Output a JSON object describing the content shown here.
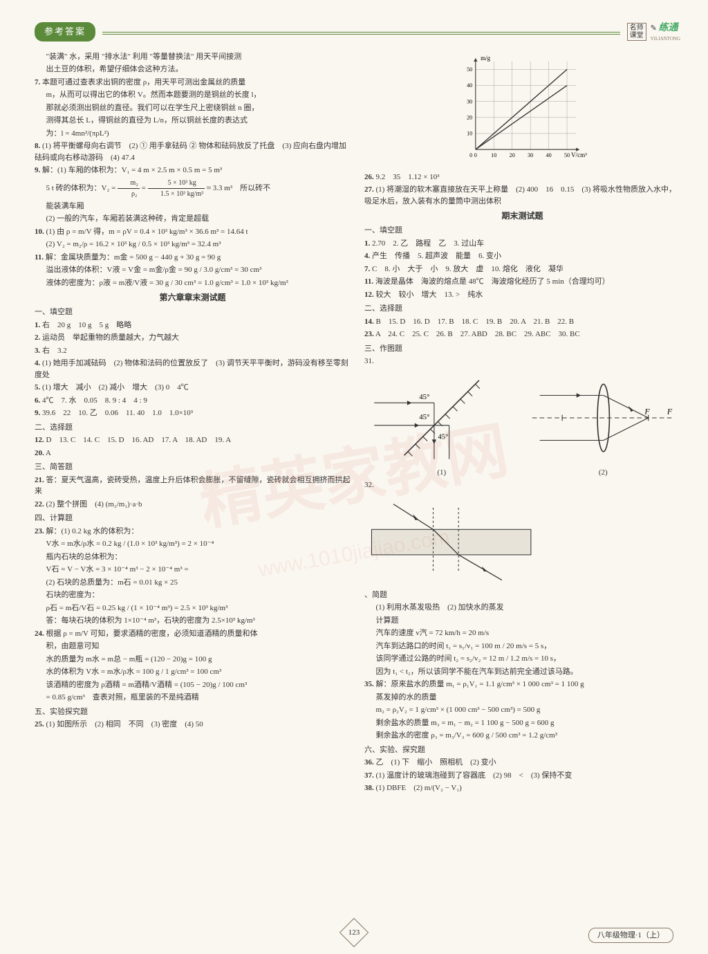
{
  "header": {
    "left_badge": "参考答案",
    "right_box1": "名师",
    "right_box2": "课堂",
    "right_title": "练通",
    "right_sub": "YILIANTONG"
  },
  "left_col": {
    "intro_lines": [
      "\"装满\" 水，采用 \"排水法\" 利用 \"等量替换法\" 用天平间接测",
      "出土豆的体积，希望仔细体会这种方法。"
    ],
    "q7": [
      "本题可通过查表求出铜的密度 ρ，用天平可测出金属丝的质量",
      "m，从而可以得出它的体积 V。然而本题要测的是铜丝的长度 l，",
      "那就必须测出铜丝的直径。我们可以在学生尺上密绕铜丝 n 圈，",
      "测得其总长 L，得铜丝的直径为 L/n，所以铜丝长度的表达式",
      "为：l = 4mn²/(πρL²)"
    ],
    "q8": "(1) 将平衡螺母向右调节　(2) ① 用手拿砝码 ② 物体和砝码放反了托盘　(3) 应向右盘内增加砝码或向右移动游码　(4) 47.4",
    "q9": {
      "l1": "解：(1) 车厢的体积为：V₁ = 4 m × 2.5 m × 0.5 m = 5 m³",
      "l2_a": "5 t 砖的体积为：V₂ = ",
      "l2_frac_n": "m₂",
      "l2_frac_d": "ρ₂",
      "l2_eq": " = ",
      "l2_frac2_n": "5 × 10³ kg",
      "l2_frac2_d": "1.5 × 10³ kg/m³",
      "l2_b": " ≈ 3.3 m³　所以砖不",
      "l3": "能装满车厢",
      "l4": "(2) 一般的汽车，车厢若装满这种砖，肯定是超载"
    },
    "q10": [
      "(1) 由 ρ = m/V 得，m = ρV = 0.4 × 10³ kg/m³ × 36.6 m³ = 14.64 t",
      "(2) V₂ = m₂/ρ = 16.2 × 10³ kg / 0.5 × 10³ kg/m³ = 32.4 m³"
    ],
    "q11": {
      "l1": "解：金属块质量为：m金 = 500 g − 440 g + 30 g = 90 g",
      "l2": "溢出液体的体积：V液 = V金 = m金/ρ金 = 90 g / 3.0 g/cm³ = 30 cm³",
      "l3": "液体的密度为：ρ液 = m液/V液 = 30 g / 30 cm³ = 1.0 g/cm³ = 1.0 × 10³ kg/m³"
    },
    "section2": "第六章章末测试题",
    "fill_heading": "一、填空题",
    "f1": "右　20 g　10 g　5 g　略略",
    "f2": "运动员　举起重物的质量越大，力气越大",
    "f3": "右　3.2",
    "f4": "(1) 她用手加减砝码　(2) 物体和法码的位置放反了　(3) 调节天平平衡时，游码没有移至零刻度处",
    "f5": "(1) 增大　减小　(2) 减小　增大　(3) 0　4℃",
    "f6": "4℃　7. 水　0.05　8. 9 : 4　4 : 9",
    "f9": "39.6　22　10. 乙　0.06　11. 40　1.0　1.0×10³",
    "choice_heading": "二、选择题",
    "c12": "D　13. C　14. C　15. D　16. AD　17. A　18. AD　19. A",
    "c20": "A",
    "short_heading": "三、简答题",
    "s21": "答：夏天气温高，瓷砖受热，温度上升后体积会膨胀，不留缝隙，瓷砖就会相互拥挤而拱起来",
    "s22": "(2) 整个拼图　(4) (m₂/m₁)·a·b",
    "calc_heading": "四、计算题",
    "c23": {
      "l1": "解：(1) 0.2 kg 水的体积为：",
      "l2": "V水 = m水/ρ水 = 0.2 kg / (1.0 × 10³ kg/m³) = 2 × 10⁻⁴",
      "l3": "瓶内石块的总体积为：",
      "l4": "V石 = V − V水 = 3 × 10⁻⁴ m³ − 2 × 10⁻⁴ m³ =",
      "l5": "(2) 石块的总质量为：m石 = 0.01 kg × 25",
      "l6": "石块的密度为：",
      "l7": "ρ石 = m石/V石 = 0.25 kg / (1 × 10⁻⁴ m³) = 2.5 × 10³ kg/m³",
      "l8": "答：每块石块的体积为 1×10⁻⁴ m³，石块的密度为 2.5×10³ kg/m³"
    },
    "c24": {
      "l1": "根据 ρ = m/V 可知，要求酒精的密度，必须知道酒精的质量和体",
      "l2": "积，由题意可知",
      "l3": "水的质量为 m水 = m总 − m瓶 = (120 − 20)g = 100 g",
      "l4": "水的体积为 V水 = m水/ρ水 = 100 g / 1 g/cm³ = 100 cm³",
      "l5": "该酒精的密度为 ρ酒精 = m酒精/V酒精 = (105 − 20)g / 100 cm³",
      "l6": "= 0.85 g/cm³　查表对照，瓶里装的不是纯酒精"
    },
    "exp_heading": "五、实验探究题",
    "e25": "(1) 如图所示　(2) 相同　不同　(3) 密度　(4) 50"
  },
  "right_col": {
    "chart": {
      "type": "line",
      "x_label": "V/cm³",
      "y_label": "m/g",
      "xlim": [
        0,
        55
      ],
      "ylim": [
        0,
        55
      ],
      "xticks": [
        0,
        10,
        20,
        30,
        40,
        50
      ],
      "yticks": [
        10,
        20,
        30,
        40,
        50
      ],
      "series": [
        {
          "points": [
            [
              0,
              0
            ],
            [
              50,
              50
            ]
          ],
          "color": "#333"
        },
        {
          "points": [
            [
              0,
              0
            ],
            [
              50,
              40
            ]
          ],
          "color": "#333"
        }
      ],
      "grid_color": "#999",
      "axis_color": "#333",
      "background_color": "#faf7f0"
    },
    "q26": "9.2　35　1.12 × 10³",
    "q27": "(1) 将潮湿的软木塞直接放在天平上称量　(2) 400　16　0.15　(3) 将吸水性物质放入水中，吸足水后，放入装有水的量筒中测出体积",
    "section3": "期末测试题",
    "fill_heading": "一、填空题",
    "f1": "2.70　2. 乙　路程　乙　3. 过山车",
    "f4": "产生　传播　5. 超声波　能量　6. 变小",
    "f7": "C　8. 小　大于　小　9. 放大　虚　10. 熔化　液化　凝华",
    "f11": "海波是晶体　海波的熔点是 48℃　海波熔化经历了 5 min（合理均可）",
    "f12": "较大　较小　增大　13. >　纯水",
    "choice_heading": "二、选择题",
    "c14": "B　15. D　16. D　17. B　18. C　19. B　20. A　21. B　22. B",
    "c23": "A　24. C　25. C　26. B　27. ABD　28. BC　29. ABC　30. BC",
    "draw_heading": "三、作图题",
    "d31": "31.",
    "diagram31": {
      "type": "optics",
      "angle_labels": [
        "45°",
        "45°",
        "45°"
      ],
      "labels": [
        "(1)",
        "(2)",
        "F"
      ],
      "line_color": "#333"
    },
    "d32": "32.",
    "diagram32": {
      "type": "refraction",
      "fill_color": "#e8e3d8",
      "line_color": "#333"
    },
    "short_heading": "简题",
    "s_l1": "(1) 利用水蒸发吸热　(2) 加快水的蒸发",
    "calc_sub": "计算题",
    "s_l2": "汽车的速度 v汽 = 72 km/h = 20 m/s",
    "s_l3": "汽车到达路口的时间 t₁ = s₁/v₁ = 100 m / 20 m/s = 5 s，",
    "s_l4": "该同学通过公路的时间 t₂ = s₂/v₂ = 12 m / 1.2 m/s = 10 s，",
    "s_l5": "因为 t₁ < t₂，所以该同学不能在汽车到达前完全通过该马路。",
    "q35": {
      "l1": "解：原来盐水的质量 m₁ = ρ₁V₁ = 1.1 g/cm³ × 1 000 cm³ = 1 100 g",
      "l2": "蒸发掉的水的质量",
      "l3": "m₂ = ρ₂V₂ = 1 g/cm³ × (1 000 cm³ − 500 cm³) = 500 g",
      "l4": "剩余盐水的质量 m₃ = m₁ − m₂ = 1 100 g − 500 g = 600 g",
      "l5": "剩余盐水的密度 ρ₃ = m₃/V₃ = 600 g / 500 cm³ = 1.2 g/cm³"
    },
    "exp_heading": "六、实验、探究题",
    "e36": "乙　(1) 下　缩小　照相机　(2) 变小",
    "e37": "(1) 温度计的玻璃泡碰到了容器底　(2) 98　<　(3) 保持不变",
    "e38": "(1) DBFE　(2) m/(V₂ − V₁)"
  },
  "footer": {
    "page": "123",
    "right": "八年级物理·1（上）"
  },
  "watermark": {
    "main": "精英家教网",
    "sub": "www.1010jiajiao.com"
  }
}
